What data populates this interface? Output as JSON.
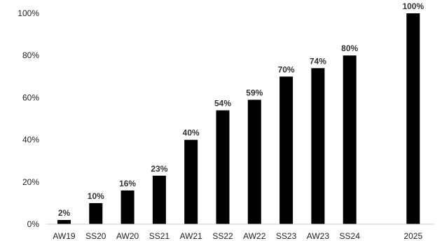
{
  "chart_data": {
    "type": "bar",
    "categories": [
      "AW19",
      "SS20",
      "AW20",
      "SS21",
      "AW21",
      "SS22",
      "AW22",
      "SS23",
      "AW23",
      "SS24",
      "",
      "2025"
    ],
    "values": [
      2,
      10,
      16,
      23,
      40,
      54,
      59,
      70,
      74,
      80,
      null,
      100
    ],
    "data_labels": [
      "2%",
      "10%",
      "16%",
      "23%",
      "40%",
      "54%",
      "59%",
      "70%",
      "74%",
      "80%",
      "",
      "100%"
    ],
    "y_ticks": [
      0,
      20,
      40,
      60,
      80,
      100
    ],
    "y_tick_labels": [
      "0%",
      "20%",
      "40%",
      "60%",
      "80%",
      "100%"
    ],
    "ylim": [
      0,
      100
    ],
    "title": "",
    "xlabel": "",
    "ylabel": "",
    "grid": false,
    "legend": "none",
    "colors": {
      "bar": "#000000",
      "axis": "#cfcfcf",
      "tick_text": "#222222",
      "label_text": "#333333"
    }
  }
}
